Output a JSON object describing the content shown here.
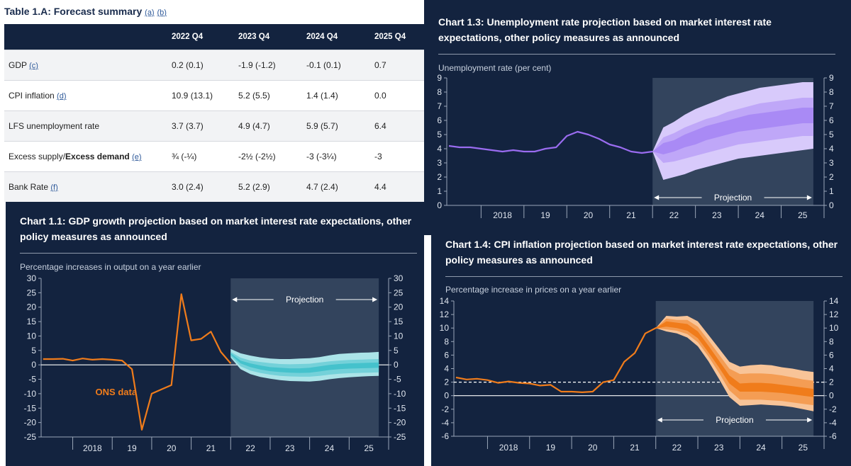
{
  "table": {
    "title": "Table 1.A: Forecast summary",
    "title_notes": [
      "(a)",
      "(b)"
    ],
    "headers": [
      "",
      "2022 Q4",
      "2023 Q4",
      "2024 Q4",
      "2025 Q4"
    ],
    "rows": [
      {
        "label": "GDP",
        "bold_label": "",
        "note": "(c)",
        "values": [
          "0.2 (0.1)",
          "-1.9 (-1.2)",
          "-0.1 (0.1)",
          "0.7"
        ]
      },
      {
        "label": "CPI inflation",
        "bold_label": "",
        "note": "(d)",
        "values": [
          "10.9 (13.1)",
          "5.2 (5.5)",
          "1.4 (1.4)",
          "0.0"
        ]
      },
      {
        "label": "LFS unemployment rate",
        "bold_label": "",
        "note": "",
        "values": [
          "3.7 (3.7)",
          "4.9 (4.7)",
          "5.9 (5.7)",
          "6.4"
        ]
      },
      {
        "label": "Excess supply/",
        "bold_label": "Excess demand",
        "note": "(e)",
        "values": [
          "¾ (-¼)",
          "-2½ (-2½)",
          "-3 (-3¼)",
          "-3"
        ]
      },
      {
        "label": "Bank Rate",
        "bold_label": "",
        "note": "(f)",
        "values": [
          "3.0 (2.4)",
          "5.2 (2.9)",
          "4.7 (2.4)",
          "4.4"
        ]
      }
    ]
  },
  "chart_data": [
    {
      "id": "gdp",
      "type": "line",
      "title": "Chart 1.1: GDP growth projection based on market interest rate expectations, other policy measures as announced",
      "ylabel": "Percentage increases in output on a year earlier",
      "ylim": [
        -25,
        30
      ],
      "yticks": [
        30,
        25,
        20,
        15,
        10,
        5,
        0,
        -5,
        -10,
        -15,
        -20,
        -25
      ],
      "xlim": [
        2017.2,
        2026.0
      ],
      "xtick_labels": [
        {
          "x": 2018.5,
          "label": "2018"
        },
        {
          "x": 2019.5,
          "label": "19"
        },
        {
          "x": 2020.5,
          "label": "20"
        },
        {
          "x": 2021.5,
          "label": "21"
        },
        {
          "x": 2022.5,
          "label": "22"
        },
        {
          "x": 2023.5,
          "label": "23"
        },
        {
          "x": 2024.5,
          "label": "24"
        },
        {
          "x": 2025.5,
          "label": "25"
        }
      ],
      "projection_start": 2022.0,
      "projection_end": 2025.75,
      "projection_label": "Projection",
      "annotation": "ONS data",
      "series": [
        {
          "name": "ONS data",
          "color": "#f07c1b",
          "x": [
            2017.25,
            2017.5,
            2017.75,
            2018.0,
            2018.25,
            2018.5,
            2018.75,
            2019.0,
            2019.25,
            2019.5,
            2019.75,
            2020.0,
            2020.25,
            2020.5,
            2020.75,
            2021.0,
            2021.25,
            2021.5,
            2021.75,
            2022.0
          ],
          "y": [
            2.0,
            2.0,
            2.1,
            1.5,
            2.2,
            1.8,
            2.0,
            1.8,
            1.5,
            -1.5,
            -22.5,
            -10.0,
            -8.5,
            -7.0,
            24.5,
            8.5,
            9.0,
            11.5,
            4.5,
            0.5
          ]
        }
      ],
      "fan": {
        "color": "#45c2cc",
        "x": [
          2022.0,
          2022.25,
          2022.5,
          2022.75,
          2023.0,
          2023.25,
          2023.5,
          2023.75,
          2024.0,
          2024.25,
          2024.5,
          2024.75,
          2025.0,
          2025.25,
          2025.5,
          2025.75
        ],
        "outer_upper": [
          5.5,
          4.0,
          3.2,
          2.6,
          2.2,
          2.0,
          2.0,
          2.2,
          2.3,
          2.7,
          3.3,
          3.8,
          4.0,
          4.2,
          4.3,
          4.5
        ],
        "mid_upper": [
          4.5,
          2.5,
          1.5,
          1.0,
          0.6,
          0.3,
          0.2,
          0.3,
          0.4,
          0.8,
          1.2,
          1.5,
          1.7,
          1.8,
          1.9,
          2.0
        ],
        "inner_upper": [
          4.0,
          1.5,
          0.5,
          -0.2,
          -0.8,
          -1.0,
          -1.2,
          -1.2,
          -1.0,
          -0.5,
          0.0,
          0.3,
          0.5,
          0.6,
          0.7,
          0.8
        ],
        "inner_lower": [
          3.5,
          0.5,
          -0.8,
          -1.6,
          -2.2,
          -2.5,
          -2.7,
          -2.8,
          -2.7,
          -2.3,
          -1.8,
          -1.5,
          -1.3,
          -1.2,
          -1.1,
          -1.0
        ],
        "mid_lower": [
          3.0,
          -0.5,
          -2.0,
          -2.8,
          -3.4,
          -3.8,
          -4.0,
          -4.1,
          -4.1,
          -3.8,
          -3.4,
          -3.1,
          -2.9,
          -2.8,
          -2.7,
          -2.6
        ],
        "outer_lower": [
          2.5,
          -1.5,
          -3.2,
          -4.2,
          -4.8,
          -5.3,
          -5.6,
          -5.7,
          -5.8,
          -5.5,
          -5.0,
          -4.6,
          -4.3,
          -4.1,
          -3.9,
          -3.8
        ]
      }
    },
    {
      "id": "unemp",
      "type": "line",
      "title": "Chart 1.3: Unemployment rate projection based on market interest rate expectations, other policy measures as announced",
      "ylabel": "Unemployment rate (per cent)",
      "ylim": [
        0,
        9
      ],
      "yticks": [
        9,
        8,
        7,
        6,
        5,
        4,
        3,
        2,
        1,
        0
      ],
      "xlim": [
        2017.2,
        2026.0
      ],
      "xtick_labels": [
        {
          "x": 2018.5,
          "label": "2018"
        },
        {
          "x": 2019.5,
          "label": "19"
        },
        {
          "x": 2020.5,
          "label": "20"
        },
        {
          "x": 2021.5,
          "label": "21"
        },
        {
          "x": 2022.5,
          "label": "22"
        },
        {
          "x": 2023.5,
          "label": "23"
        },
        {
          "x": 2024.5,
          "label": "24"
        },
        {
          "x": 2025.5,
          "label": "25"
        }
      ],
      "projection_start": 2022.0,
      "projection_end": 2025.75,
      "projection_label": "Projection",
      "series": [
        {
          "name": "Unemployment rate",
          "color": "#9a6cf0",
          "x": [
            2017.25,
            2017.5,
            2017.75,
            2018.0,
            2018.25,
            2018.5,
            2018.75,
            2019.0,
            2019.25,
            2019.5,
            2019.75,
            2020.0,
            2020.25,
            2020.5,
            2020.75,
            2021.0,
            2021.25,
            2021.5,
            2021.75,
            2022.0
          ],
          "y": [
            4.2,
            4.1,
            4.1,
            4.0,
            3.9,
            3.8,
            3.9,
            3.8,
            3.8,
            4.0,
            4.1,
            4.9,
            5.2,
            5.0,
            4.7,
            4.3,
            4.1,
            3.8,
            3.7,
            3.8
          ]
        }
      ],
      "fan": {
        "color": "#a98af5",
        "x": [
          2022.0,
          2022.25,
          2022.5,
          2022.75,
          2023.0,
          2023.25,
          2023.5,
          2023.75,
          2024.0,
          2024.25,
          2024.5,
          2024.75,
          2025.0,
          2025.25,
          2025.5,
          2025.75
        ],
        "outer_upper": [
          3.8,
          5.5,
          5.9,
          6.4,
          6.8,
          7.1,
          7.4,
          7.7,
          7.9,
          8.1,
          8.3,
          8.4,
          8.5,
          8.6,
          8.7,
          8.7
        ],
        "mid_upper": [
          3.8,
          4.8,
          5.1,
          5.5,
          5.8,
          6.1,
          6.3,
          6.6,
          6.8,
          7.0,
          7.2,
          7.3,
          7.4,
          7.5,
          7.6,
          7.6
        ],
        "inner_upper": [
          3.8,
          4.4,
          4.6,
          5.0,
          5.3,
          5.6,
          5.8,
          6.0,
          6.2,
          6.4,
          6.5,
          6.6,
          6.7,
          6.8,
          6.9,
          6.9
        ],
        "inner_lower": [
          3.8,
          3.6,
          3.8,
          4.1,
          4.3,
          4.6,
          4.8,
          5.0,
          5.2,
          5.3,
          5.4,
          5.5,
          5.6,
          5.7,
          5.8,
          5.8
        ],
        "mid_lower": [
          3.8,
          3.0,
          3.1,
          3.3,
          3.5,
          3.7,
          3.9,
          4.1,
          4.3,
          4.4,
          4.5,
          4.6,
          4.7,
          4.8,
          4.9,
          4.9
        ],
        "outer_lower": [
          3.8,
          1.8,
          2.0,
          2.2,
          2.5,
          2.7,
          2.9,
          3.1,
          3.3,
          3.4,
          3.5,
          3.6,
          3.7,
          3.8,
          3.9,
          4.0
        ]
      }
    },
    {
      "id": "cpi",
      "type": "line",
      "title": "Chart 1.4: CPI inflation projection based on market interest rate expectations, other policy measures as announced",
      "ylabel": "Percentage increase in prices on a year earlier",
      "ylim": [
        -6,
        14
      ],
      "yticks": [
        14,
        12,
        10,
        8,
        6,
        4,
        2,
        0,
        -2,
        -4,
        -6
      ],
      "xlim": [
        2017.2,
        2026.0
      ],
      "xtick_labels": [
        {
          "x": 2018.5,
          "label": "2018"
        },
        {
          "x": 2019.5,
          "label": "19"
        },
        {
          "x": 2020.5,
          "label": "20"
        },
        {
          "x": 2021.5,
          "label": "21"
        },
        {
          "x": 2022.5,
          "label": "22"
        },
        {
          "x": 2023.5,
          "label": "23"
        },
        {
          "x": 2024.5,
          "label": "24"
        },
        {
          "x": 2025.5,
          "label": "25"
        }
      ],
      "projection_start": 2022.0,
      "projection_end": 2025.75,
      "projection_label": "Projection",
      "target_line": 2,
      "series": [
        {
          "name": "CPI inflation",
          "color": "#f07c1b",
          "x": [
            2017.25,
            2017.5,
            2017.75,
            2018.0,
            2018.25,
            2018.5,
            2018.75,
            2019.0,
            2019.25,
            2019.5,
            2019.75,
            2020.0,
            2020.25,
            2020.5,
            2020.75,
            2021.0,
            2021.25,
            2021.5,
            2021.75,
            2022.0,
            2022.25
          ],
          "y": [
            2.7,
            2.4,
            2.5,
            2.3,
            1.9,
            2.1,
            1.9,
            1.8,
            1.5,
            1.6,
            0.6,
            0.6,
            0.5,
            0.6,
            2.0,
            2.3,
            5.0,
            6.3,
            9.2,
            10.0,
            10.4
          ]
        }
      ],
      "fan": {
        "color": "#f07c1b",
        "x": [
          2022.0,
          2022.25,
          2022.5,
          2022.75,
          2023.0,
          2023.25,
          2023.5,
          2023.75,
          2024.0,
          2024.25,
          2024.5,
          2024.75,
          2025.0,
          2025.25,
          2025.5,
          2025.75
        ],
        "outer_upper": [
          10.0,
          11.8,
          11.7,
          11.8,
          11.0,
          9.0,
          7.0,
          5.0,
          4.3,
          4.5,
          4.6,
          4.5,
          4.2,
          4.0,
          3.7,
          3.5
        ],
        "mid_upper": [
          10.0,
          11.4,
          11.2,
          11.2,
          10.2,
          8.2,
          6.1,
          4.0,
          3.2,
          3.3,
          3.3,
          3.2,
          3.0,
          2.7,
          2.4,
          2.2
        ],
        "inner_upper": [
          10.0,
          11.0,
          10.8,
          10.6,
          9.5,
          7.4,
          5.2,
          3.0,
          1.8,
          1.9,
          1.9,
          1.8,
          1.6,
          1.4,
          1.2,
          1.0
        ],
        "inner_lower": [
          10.0,
          10.2,
          10.0,
          9.6,
          8.5,
          6.4,
          4.2,
          1.8,
          0.6,
          0.6,
          0.6,
          0.5,
          0.4,
          0.2,
          0.0,
          -0.2
        ],
        "mid_lower": [
          10.0,
          9.8,
          9.6,
          9.1,
          7.9,
          5.8,
          3.4,
          0.8,
          -0.6,
          -0.6,
          -0.6,
          -0.7,
          -0.8,
          -1.0,
          -1.2,
          -1.4
        ],
        "outer_lower": [
          10.0,
          9.5,
          9.2,
          8.6,
          7.3,
          5.1,
          2.5,
          -0.2,
          -1.5,
          -1.4,
          -1.3,
          -1.4,
          -1.5,
          -1.7,
          -2.0,
          -2.3
        ]
      }
    }
  ]
}
